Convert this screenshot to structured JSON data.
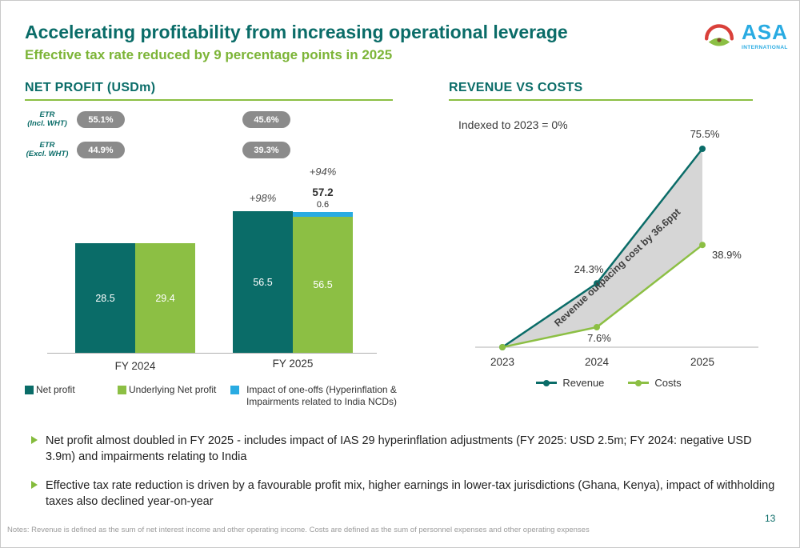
{
  "header": {
    "title": "Accelerating profitability from increasing operational leverage",
    "subtitle": "Effective tax rate reduced by 9 percentage points in 2025",
    "logo": {
      "name": "ASA",
      "subname": "INTERNATIONAL"
    }
  },
  "net_profit_panel": {
    "title": "NET PROFIT (USDm)",
    "etr_rows": [
      {
        "label": "ETR",
        "sublabel": "(Incl. WHT)",
        "badges": [
          "55.1%",
          "45.6%"
        ]
      },
      {
        "label": "ETR",
        "sublabel": "(Excl. WHT)",
        "badges": [
          "44.9%",
          "39.3%"
        ]
      }
    ],
    "groups": [
      {
        "label": "FY 2024",
        "net_profit": "28.5",
        "underlying": "29.4"
      },
      {
        "label": "FY 2025",
        "net_profit": "56.5",
        "underlying": "56.5",
        "one_off": "0.6",
        "total": "57.2",
        "growth_net": "+98%",
        "growth_underlying": "+94%"
      }
    ],
    "legend": [
      {
        "label": "Net profit",
        "color": "#0a6c68"
      },
      {
        "label": "Underlying Net profit",
        "color": "#8cbf44"
      },
      {
        "label": "Impact of one-offs (Hyperinflation & Impairments related to India NCDs)",
        "color": "#29abe2"
      }
    ]
  },
  "revenue_costs_panel": {
    "title": "REVENUE VS COSTS",
    "note": "Indexed to 2023 = 0%",
    "band_label": "Revenue outpacing cost by 36.6ppt",
    "x_labels": [
      "2023",
      "2024",
      "2025"
    ],
    "revenue_labels": [
      "",
      "24.3%",
      "75.5%"
    ],
    "costs_labels": [
      "",
      "7.6%",
      "38.9%"
    ],
    "legend": [
      {
        "label": "Revenue",
        "color": "#0a6c68"
      },
      {
        "label": "Costs",
        "color": "#8cbf44"
      }
    ]
  },
  "bullets": [
    "Net profit almost doubled in FY 2025 - includes impact of IAS 29 hyperinflation adjustments (FY 2025: USD 2.5m; FY 2024: negative USD 3.9m) and impairments relating to India",
    "Effective tax rate reduction is driven by a favourable profit mix, higher earnings in lower-tax jurisdictions (Ghana, Kenya), impact of withholding taxes also declined year-on-year"
  ],
  "footer": {
    "notes": "Notes: Revenue is defined as the sum of net interest income and other operating income. Costs are defined as the sum of personnel expenses and other operating expenses",
    "page_number": "13"
  },
  "chart_data": [
    {
      "type": "bar",
      "title": "NET PROFIT (USDm)",
      "categories": [
        "FY 2024",
        "FY 2025"
      ],
      "series": [
        {
          "name": "Net profit",
          "values": [
            28.5,
            56.5
          ],
          "color": "#0a6c68"
        },
        {
          "name": "Underlying Net profit",
          "values": [
            29.4,
            56.5
          ],
          "color": "#8cbf44"
        },
        {
          "name": "Impact of one-offs (Hyperinflation & Impairments related to India NCDs)",
          "values": [
            0,
            0.6
          ],
          "color": "#29abe2"
        }
      ],
      "annotations": {
        "fy2025_underlying_total": 57.2,
        "net_profit_growth": "+98%",
        "underlying_growth": "+94%",
        "etr_incl_wht": {
          "FY 2024": "55.1%",
          "FY 2025": "45.6%"
        },
        "etr_excl_wht": {
          "FY 2024": "44.9%",
          "FY 2025": "39.3%"
        }
      },
      "legend_position": "bottom"
    },
    {
      "type": "line",
      "title": "REVENUE VS COSTS",
      "subtitle": "Indexed to 2023 = 0%",
      "categories": [
        "2023",
        "2024",
        "2025"
      ],
      "series": [
        {
          "name": "Revenue",
          "values": [
            0,
            24.3,
            75.5
          ],
          "color": "#0a6c68"
        },
        {
          "name": "Costs",
          "values": [
            0,
            7.6,
            38.9
          ],
          "color": "#8cbf44"
        }
      ],
      "annotation": "Revenue outpacing cost by 36.6ppt",
      "ylim": [
        0,
        80
      ],
      "grid": false,
      "legend_position": "bottom"
    }
  ]
}
